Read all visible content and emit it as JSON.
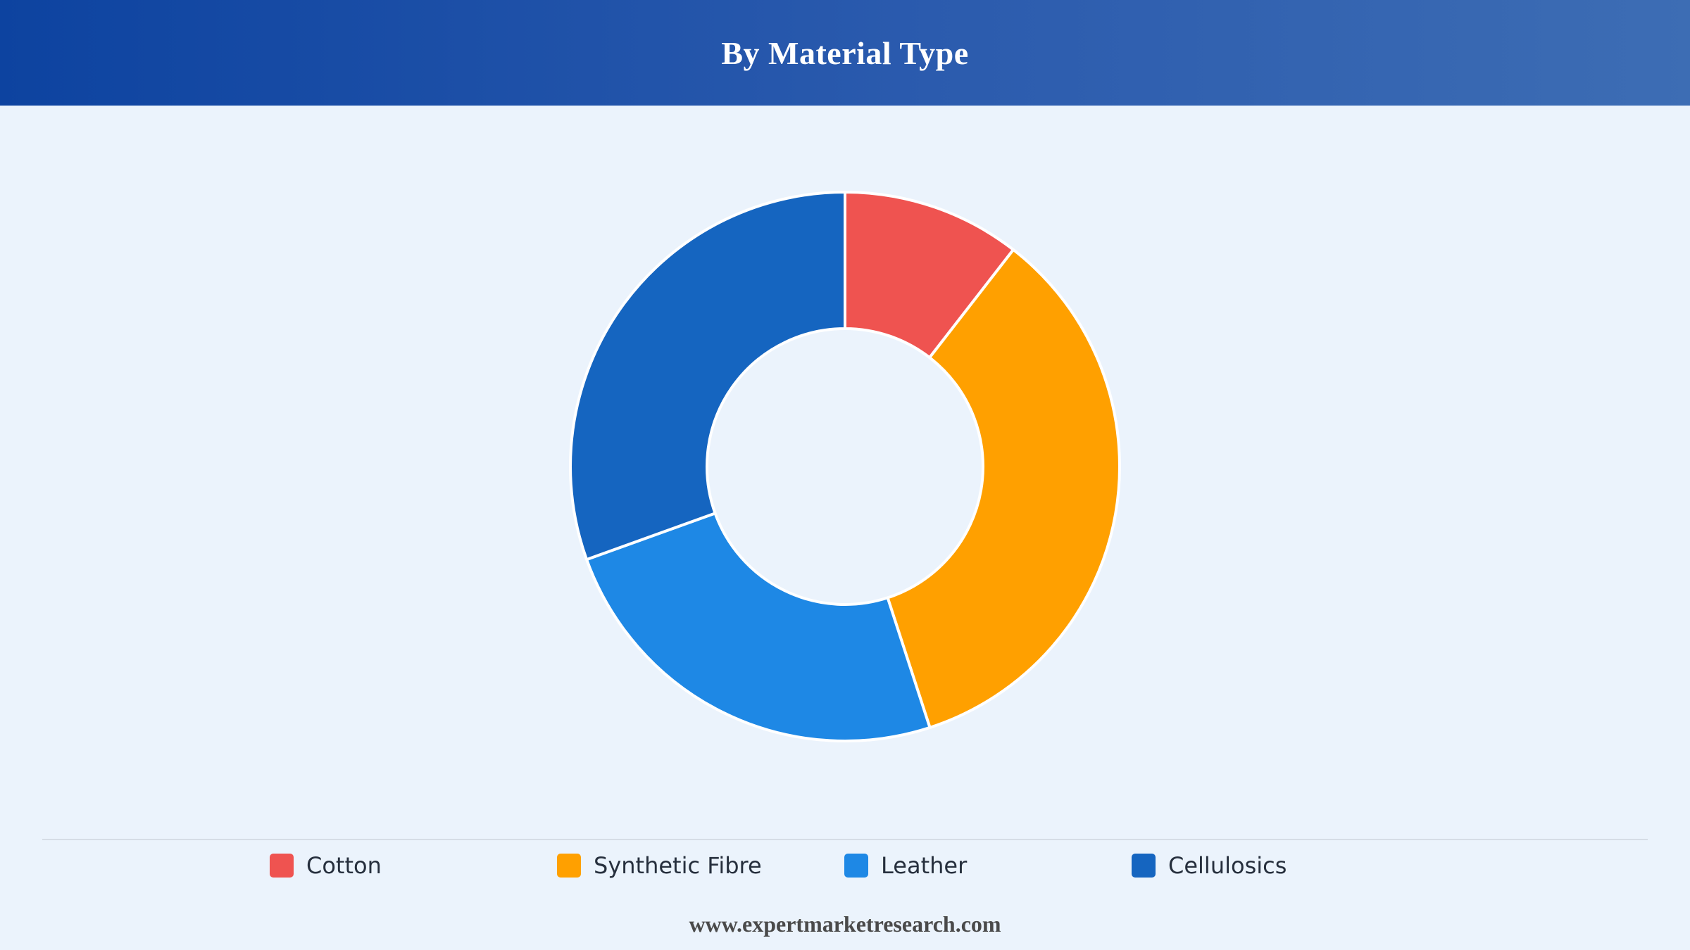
{
  "header": {
    "title": "By Material Type"
  },
  "chart_data": {
    "type": "pie",
    "variant": "donut",
    "title": "By Material Type",
    "categories": [
      "Cotton",
      "Synthetic Fibre",
      "Leather",
      "Cellulosics"
    ],
    "values": [
      10.5,
      34.5,
      24.5,
      30.5
    ],
    "unit": "%",
    "colors": [
      "#ef5350",
      "#ffa000",
      "#1e88e5",
      "#1565c0"
    ],
    "legend_position": "bottom"
  },
  "legend": {
    "items": [
      {
        "label": "Cotton",
        "color": "#ef5350"
      },
      {
        "label": "Synthetic Fibre",
        "color": "#ffa000"
      },
      {
        "label": "Leather",
        "color": "#1e88e5"
      },
      {
        "label": "Cellulosics",
        "color": "#1565c0"
      }
    ]
  },
  "footer": {
    "text": "www.expertmarketresearch.com"
  }
}
